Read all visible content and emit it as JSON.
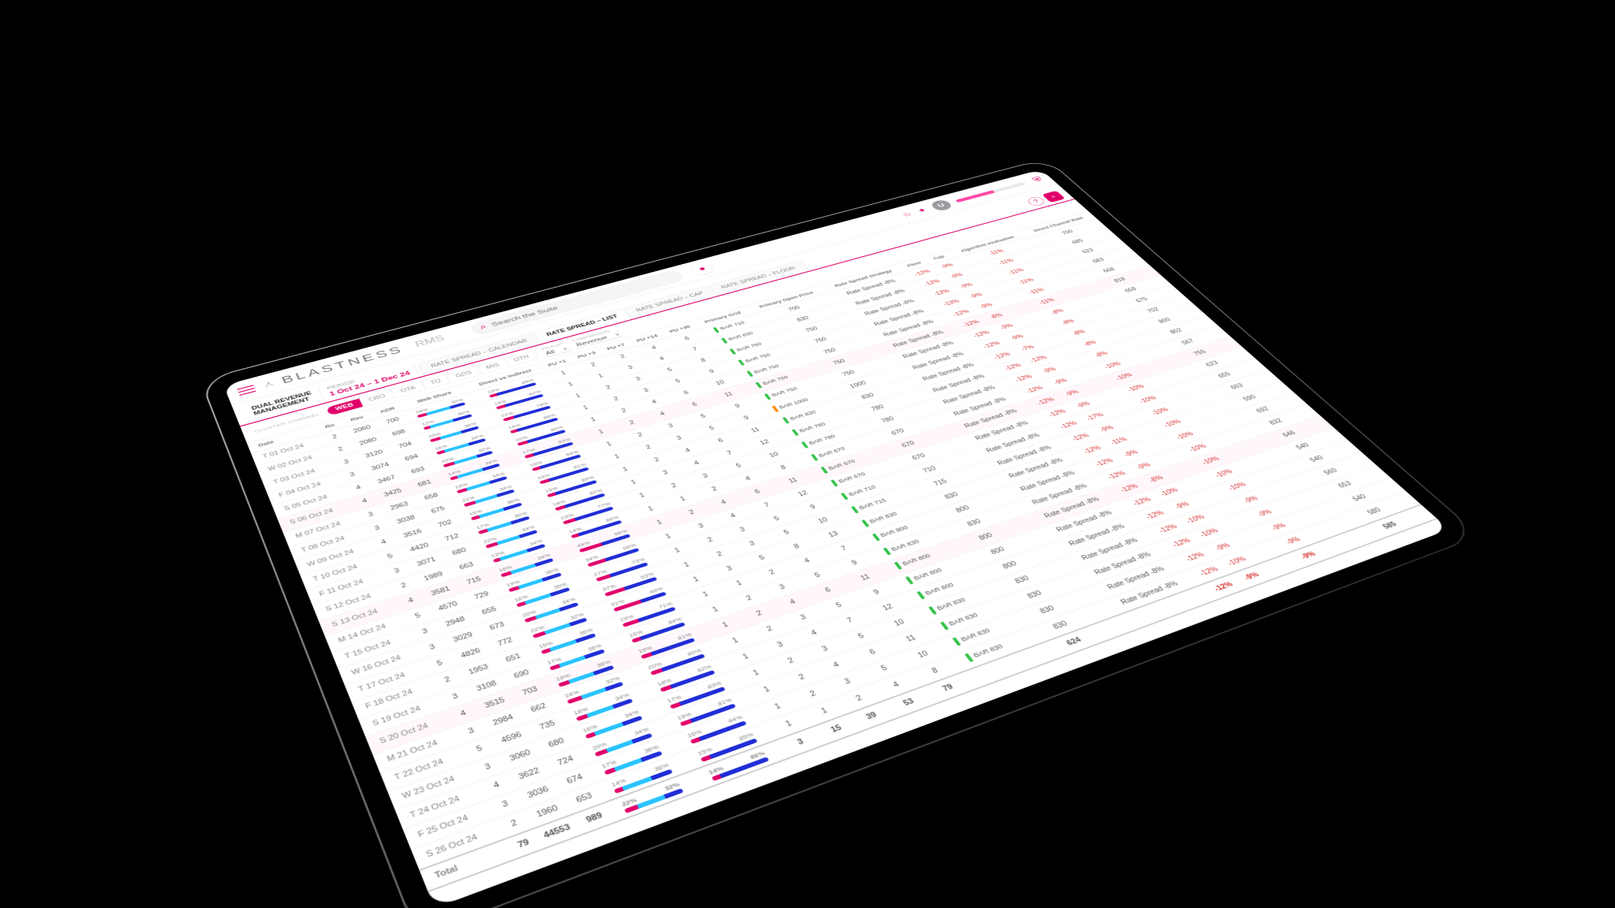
{
  "brand": {
    "name": "BLASTNESS",
    "suite": "RMS"
  },
  "search": {
    "placeholder": "Search the Suite"
  },
  "user": {
    "initial": "U"
  },
  "section": "DUAL REVENUE\nMANAGEMENT",
  "period": {
    "label": "PERIOD",
    "value": "1 Oct 24 – 1 Dec 24"
  },
  "rate_tabs": [
    "RATE SPREAD – CALENDAR",
    "RATE SPREAD – LIST",
    "RATE SPREAD – CAP",
    "RATE SPREAD – FLOOR"
  ],
  "rate_tabs_active": 1,
  "channel_label": "CLUSTER CHANNEL",
  "channels": [
    "WEB",
    "CRO",
    "OTA",
    "TO",
    "GDS",
    "MIS",
    "OTH"
  ],
  "channels_active": 0,
  "pickup": {
    "label": "PICKUP",
    "value": "All"
  },
  "comparison": {
    "label": "COMPARISON",
    "value": "Revenue"
  },
  "columns": [
    "Date",
    "Rn",
    "Rev",
    "ADR",
    "Web Share",
    "Direct vs Indirect",
    "PU +1",
    "PU +3",
    "PU +7",
    "PU +14",
    "PU +30",
    "Primary Grid",
    "Primary Open Price",
    "Rate Spread Strategy",
    "Floor",
    "Cap",
    "Algorithm evaluation",
    "Direct Channel Rate"
  ],
  "colors": {
    "accent": "#e1006a",
    "bar_a": "#e1006a",
    "bar_b": "#1f2dd6",
    "bar_c": "#29c3ff",
    "neg": "#d62c2c",
    "pos": "#2a9a2a",
    "dot_ok": "#35c24a",
    "dot_warn": "#ff8a00"
  },
  "strategy_text": "Rate Spread -8%",
  "rows": [
    {
      "date": "T 01 Oct 24",
      "rn": 2,
      "rev": 2060,
      "adr": 700,
      "ws": [
        18,
        50,
        32
      ],
      "dvi": [
        15,
        85
      ],
      "pu": [
        1,
        2,
        2,
        4,
        6
      ],
      "grid": "BAR 710",
      "dot": "g",
      "open": 700,
      "floor": -12,
      "cap": -9,
      "algo": -11,
      "dcr": 700
    },
    {
      "date": "W 02 Oct 24",
      "rn": 2,
      "rev": 2080,
      "adr": 698,
      "ws": [
        12,
        48,
        40
      ],
      "dvi": [
        18,
        82
      ],
      "pu": [
        1,
        1,
        3,
        4,
        7
      ],
      "grid": "BAR 830",
      "dot": "g",
      "open": 830,
      "floor": -12,
      "cap": -9,
      "algo": -11,
      "dcr": 685
    },
    {
      "date": "T 03 Oct 24",
      "rn": 3,
      "rev": 3120,
      "adr": 704,
      "ws": [
        20,
        44,
        36
      ],
      "dvi": [
        22,
        78
      ],
      "pu": [
        1,
        2,
        3,
        5,
        8
      ],
      "grid": "BAR 750",
      "dot": "g",
      "open": 750,
      "floor": -12,
      "cap": -9,
      "algo": -11,
      "dcr": 623
    },
    {
      "date": "F 04 Oct 24",
      "rn": 3,
      "rev": 3074,
      "adr": 694,
      "ws": [
        16,
        50,
        34
      ],
      "dvi": [
        14,
        86
      ],
      "pu": [
        1,
        2,
        3,
        5,
        9
      ],
      "grid": "BAR 750",
      "dot": "g",
      "open": 750,
      "floor": -13,
      "cap": -9,
      "algo": -11,
      "dcr": 683
    },
    {
      "date": "S 05 Oct 24",
      "rn": 4,
      "rev": 3467,
      "adr": 693,
      "ws": [
        22,
        46,
        32
      ],
      "dvi": [
        20,
        80
      ],
      "pu": [
        1,
        2,
        4,
        6,
        10
      ],
      "grid": "BAR 750",
      "dot": "g",
      "open": 750,
      "floor": -12,
      "cap": -9,
      "algo": -11,
      "dcr": 668
    },
    {
      "date": "S 06 Oct 24",
      "rn": 4,
      "rev": 3425,
      "adr": 681,
      "ws": [
        14,
        52,
        34
      ],
      "dvi": [
        17,
        83
      ],
      "pu": [
        1,
        2,
        4,
        6,
        11
      ],
      "grid": "BAR 750",
      "dot": "g",
      "open": 750,
      "floor": -12,
      "cap": -8,
      "algo": -11,
      "dcr": 818,
      "hl": true
    },
    {
      "date": "M 07 Oct 24",
      "rn": 3,
      "rev": 2963,
      "adr": 658,
      "ws": [
        19,
        47,
        34
      ],
      "dvi": [
        16,
        84
      ],
      "pu": [
        1,
        2,
        3,
        5,
        9
      ],
      "grid": "BAR 750",
      "dot": "g",
      "open": 750,
      "floor": -12,
      "cap": -9,
      "algo": -8,
      "dcr": 658
    },
    {
      "date": "T 08 Oct 24",
      "rn": 3,
      "rev": 3038,
      "adr": 675,
      "ws": [
        21,
        45,
        34
      ],
      "dvi": [
        19,
        81
      ],
      "pu": [
        1,
        2,
        3,
        5,
        9
      ],
      "grid": "BAR 1000",
      "dot": "o",
      "open": 1000,
      "floor": -12,
      "cap": -9,
      "algo": -8,
      "dcr": 675
    },
    {
      "date": "W 09 Oct 24",
      "rn": 4,
      "rev": 3516,
      "adr": 702,
      "ws": [
        15,
        49,
        36
      ],
      "dvi": [
        15,
        85
      ],
      "pu": [
        1,
        2,
        4,
        6,
        11
      ],
      "grid": "BAR 830",
      "dot": "g",
      "open": 830,
      "floor": -12,
      "cap": -7,
      "algo": -8,
      "dcr": 702
    },
    {
      "date": "T 10 Oct 24",
      "rn": 5,
      "rev": 4420,
      "adr": 712,
      "ws": [
        17,
        47,
        36
      ],
      "dvi": [
        18,
        82
      ],
      "pu": [
        1,
        3,
        4,
        7,
        12
      ],
      "grid": "BAR 780",
      "dot": "g",
      "open": 780,
      "floor": -12,
      "cap": -12,
      "algo": -8,
      "dcr": 800
    },
    {
      "date": "F 11 Oct 24",
      "rn": 3,
      "rev": 3071,
      "adr": 680,
      "ws": [
        22,
        44,
        34
      ],
      "dvi": [
        23,
        77
      ],
      "pu": [
        1,
        2,
        3,
        5,
        10
      ],
      "grid": "BAR 780",
      "dot": "g",
      "open": 780,
      "floor": -12,
      "cap": -9,
      "algo": -8,
      "dcr": 802
    },
    {
      "date": "S 12 Oct 24",
      "rn": 2,
      "rev": 1989,
      "adr": 663,
      "ws": [
        13,
        53,
        34
      ],
      "dvi": [
        14,
        86
      ],
      "pu": [
        1,
        1,
        2,
        4,
        8
      ],
      "grid": "BAR 670",
      "dot": "g",
      "open": 670,
      "floor": -12,
      "cap": -9,
      "algo": -10,
      "dcr": 567
    },
    {
      "date": "S 13 Oct 24",
      "rn": 4,
      "rev": 3581,
      "adr": 715,
      "ws": [
        18,
        48,
        34
      ],
      "dvi": [
        44,
        56
      ],
      "pu": [
        1,
        2,
        4,
        6,
        11
      ],
      "grid": "BAR 670",
      "dot": "g",
      "open": 670,
      "floor": -12,
      "cap": -9,
      "algo": -10,
      "dcr": 755,
      "hl": true
    },
    {
      "date": "M 14 Oct 24",
      "rn": 5,
      "rev": 4570,
      "adr": 729,
      "ws": [
        19,
        45,
        36
      ],
      "dvi": [
        34,
        66
      ],
      "pu": [
        1,
        3,
        4,
        7,
        12
      ],
      "grid": "BAR 670",
      "dot": "g",
      "open": 670,
      "floor": -12,
      "cap": -9,
      "algo": -10,
      "dcr": 623
    },
    {
      "date": "T 15 Oct 24",
      "rn": 3,
      "rev": 2948,
      "adr": 655,
      "ws": [
        16,
        48,
        36
      ],
      "dvi": [
        27,
        73
      ],
      "pu": [
        1,
        2,
        3,
        5,
        9
      ],
      "grid": "BAR 710",
      "dot": "g",
      "open": 710,
      "floor": -12,
      "cap": -17,
      "algo": -10,
      "dcr": 655
    },
    {
      "date": "W 16 Oct 24",
      "rn": 3,
      "rev": 3029,
      "adr": 673,
      "ws": [
        20,
        46,
        34
      ],
      "dvi": [
        37,
        63
      ],
      "pu": [
        1,
        2,
        3,
        5,
        10
      ],
      "grid": "BAR 715",
      "dot": "g",
      "open": 715,
      "floor": -12,
      "cap": -9,
      "algo": -10,
      "dcr": 603
    },
    {
      "date": "T 17 Oct 24",
      "rn": 5,
      "rev": 4826,
      "adr": 772,
      "ws": [
        22,
        46,
        32
      ],
      "dvi": [
        51,
        49
      ],
      "pu": [
        1,
        3,
        5,
        8,
        13
      ],
      "grid": "BAR 830",
      "dot": "g",
      "open": 830,
      "floor": -12,
      "cap": -11,
      "algo": -10,
      "dcr": 590
    },
    {
      "date": "F 18 Oct 24",
      "rn": 2,
      "rev": 1953,
      "adr": 651,
      "ws": [
        15,
        49,
        36
      ],
      "dvi": [
        29,
        71
      ],
      "pu": [
        1,
        1,
        2,
        4,
        7
      ],
      "grid": "BAR 800",
      "dot": "g",
      "open": 800,
      "floor": -12,
      "cap": -9,
      "algo": -10,
      "dcr": 692
    },
    {
      "date": "S 19 Oct 24",
      "rn": 3,
      "rev": 3108,
      "adr": 690,
      "ws": [
        17,
        47,
        36
      ],
      "dvi": [
        16,
        84
      ],
      "pu": [
        1,
        2,
        3,
        5,
        9
      ],
      "grid": "BAR 830",
      "dot": "g",
      "open": 830,
      "floor": -12,
      "cap": -9,
      "algo": -10,
      "dcr": 832
    },
    {
      "date": "S 20 Oct 24",
      "rn": 4,
      "rev": 3515,
      "adr": 703,
      "ws": [
        19,
        45,
        36
      ],
      "dvi": [
        19,
        81
      ],
      "pu": [
        1,
        2,
        4,
        6,
        11
      ],
      "grid": "BAR 800",
      "dot": "g",
      "open": 800,
      "floor": -12,
      "cap": -8,
      "algo": -10,
      "dcr": 646,
      "hl": true
    },
    {
      "date": "M 21 Oct 24",
      "rn": 3,
      "rev": 2984,
      "adr": 662,
      "ws": [
        24,
        44,
        32
      ],
      "dvi": [
        20,
        80
      ],
      "pu": [
        1,
        2,
        3,
        5,
        9
      ],
      "grid": "BAR 800",
      "dot": "g",
      "open": 800,
      "floor": -12,
      "cap": -10,
      "algo": -10,
      "dcr": 540
    },
    {
      "date": "T 22 Oct 24",
      "rn": 5,
      "rev": 4596,
      "adr": 735,
      "ws": [
        18,
        48,
        34
      ],
      "dvi": [
        18,
        82
      ],
      "pu": [
        1,
        3,
        4,
        7,
        12
      ],
      "grid": "BAR 800",
      "dot": "g",
      "open": 800,
      "floor": -12,
      "cap": -9,
      "algo": -10,
      "dcr": 540
    },
    {
      "date": "W 23 Oct 24",
      "rn": 3,
      "rev": 3060,
      "adr": 680,
      "ws": [
        16,
        50,
        34
      ],
      "dvi": [
        17,
        83
      ],
      "pu": [
        1,
        2,
        3,
        5,
        10
      ],
      "grid": "BAR 830",
      "dot": "g",
      "open": 830,
      "floor": -12,
      "cap": -10,
      "algo": -9,
      "dcr": 560
    },
    {
      "date": "T 24 Oct 24",
      "rn": 4,
      "rev": 3622,
      "adr": 724,
      "ws": [
        20,
        46,
        34
      ],
      "dvi": [
        19,
        81
      ],
      "pu": [
        1,
        2,
        4,
        6,
        11
      ],
      "grid": "BAR 830",
      "dot": "g",
      "open": 830,
      "floor": -12,
      "cap": -10,
      "algo": -9,
      "dcr": 653
    },
    {
      "date": "F 25 Oct 24",
      "rn": 3,
      "rev": 3036,
      "adr": 674,
      "ws": [
        17,
        47,
        36
      ],
      "dvi": [
        16,
        84
      ],
      "pu": [
        1,
        2,
        3,
        5,
        10
      ],
      "grid": "BAR 830",
      "dot": "g",
      "open": 830,
      "floor": -12,
      "cap": -9,
      "algo": -9,
      "dcr": 540
    },
    {
      "date": "S 26 Oct 24",
      "rn": 2,
      "rev": 1960,
      "adr": 653,
      "ws": [
        14,
        50,
        36
      ],
      "dvi": [
        15,
        85
      ],
      "pu": [
        1,
        1,
        2,
        4,
        8
      ],
      "grid": "BAR 830",
      "dot": "g",
      "open": 830,
      "floor": -12,
      "cap": -10,
      "algo": -9,
      "dcr": 580
    }
  ],
  "total": {
    "date": "Total",
    "rn": 79,
    "rev": 44553,
    "adr": 989,
    "ws": [
      22,
      46,
      32
    ],
    "dvi": [
      14,
      86
    ],
    "pu": [
      3,
      15,
      39,
      53,
      79
    ],
    "open": 624,
    "floor": -12,
    "cap": -9,
    "algo": -9,
    "dcr": 585
  }
}
